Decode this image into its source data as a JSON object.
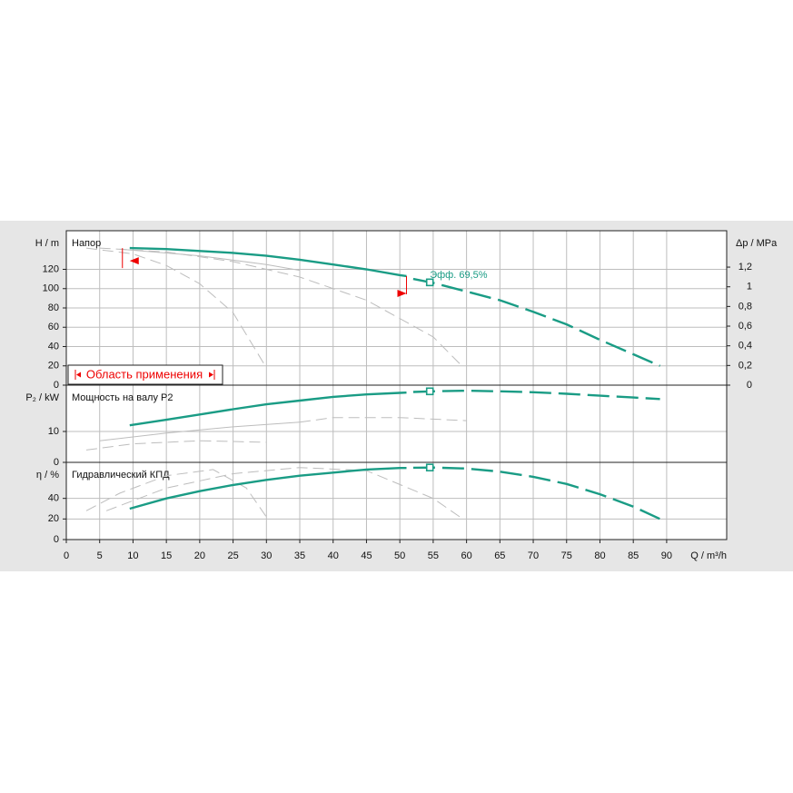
{
  "chart_data": [
    {
      "type": "line",
      "title": "Напор",
      "ylabel": "H / m",
      "ylim": [
        0,
        160
      ],
      "yticks": [
        0,
        20,
        40,
        60,
        80,
        100,
        120
      ],
      "y2label": "Δp / MPa",
      "y2lim": [
        0,
        1.57
      ],
      "y2ticks": [
        0,
        {
          "value": 0.2,
          "label": "0,2"
        },
        {
          "value": 0.4,
          "label": "0,4"
        },
        {
          "value": 0.6,
          "label": "0,6"
        },
        {
          "value": 0.8,
          "label": "0,8"
        },
        1,
        {
          "value": 1.2,
          "label": "1,2"
        }
      ],
      "series": [
        {
          "color": "#bdbdbd",
          "style": "dashed",
          "x": [
            5,
            15,
            25,
            35,
            45,
            55,
            59
          ],
          "values": [
            142,
            138,
            128,
            112,
            88,
            50,
            22
          ]
        },
        {
          "color": "#bdbdbd",
          "style": "dashed",
          "x": [
            3,
            10,
            15,
            20,
            25,
            30
          ],
          "values": [
            142,
            136,
            124,
            105,
            75,
            18
          ]
        },
        {
          "color": "#bdbdbd",
          "style": "solid",
          "x": [
            8,
            20,
            30,
            35
          ],
          "values": [
            141,
            134,
            125,
            119
          ]
        },
        {
          "color": "#1a9c85",
          "style": "solid",
          "x": [
            9.5,
            15,
            20,
            25,
            30,
            35,
            40,
            45,
            50,
            51
          ],
          "values": [
            142,
            141,
            139,
            137,
            134,
            130,
            125,
            120,
            114,
            113
          ]
        },
        {
          "color": "#1a9c85",
          "style": "dashed",
          "x": [
            52,
            55,
            60,
            65,
            70,
            75,
            80,
            85,
            89
          ],
          "values": [
            110,
            106,
            97,
            88,
            76,
            63,
            47,
            32,
            20
          ]
        }
      ],
      "operating_point": {
        "x": 54.5,
        "y": 106.5,
        "label": "Эфф.  69,5%"
      },
      "application_range": {
        "label": "Область применения",
        "x": [
          9.5,
          51
        ],
        "y": [
          142,
          113
        ]
      }
    },
    {
      "type": "line",
      "title": "Мощность на валу P2",
      "ylabel": "P₂ / kW",
      "ylim": [
        0,
        25
      ],
      "yticks": [
        0,
        10
      ],
      "series": [
        {
          "color": "#bdbdbd",
          "style": "dashed",
          "x": [
            3,
            10,
            20,
            30
          ],
          "values": [
            4,
            6,
            7,
            6.5
          ]
        },
        {
          "color": "#bdbdbd",
          "style": "solid",
          "x": [
            5,
            15,
            25,
            35
          ],
          "values": [
            7,
            9.5,
            11.5,
            13
          ]
        },
        {
          "color": "#bdbdbd",
          "style": "dashed",
          "x": [
            35,
            40,
            50,
            60
          ],
          "values": [
            13,
            14.5,
            14.5,
            13.5
          ]
        },
        {
          "color": "#1a9c85",
          "style": "solid",
          "x": [
            9.5,
            15,
            20,
            25,
            30,
            35,
            40,
            45,
            50,
            51
          ],
          "values": [
            12,
            13.8,
            15.5,
            17.2,
            18.8,
            20,
            21.2,
            22,
            22.5,
            22.6
          ]
        },
        {
          "color": "#1a9c85",
          "style": "dashed",
          "x": [
            52,
            55,
            60,
            65,
            70,
            75,
            80,
            85,
            89
          ],
          "values": [
            22.8,
            23,
            23.2,
            23,
            22.7,
            22.2,
            21.6,
            21,
            20.5
          ]
        }
      ],
      "operating_point": {
        "x": 54.5,
        "y": 23
      }
    },
    {
      "type": "line",
      "title": "Гидравлический КПД",
      "ylabel": "η / %",
      "ylim": [
        0,
        75
      ],
      "yticks": [
        0,
        20,
        40
      ],
      "xlabel": "Q / m³/h",
      "xlim": [
        0,
        99
      ],
      "xticks": [
        0,
        5,
        10,
        15,
        20,
        25,
        30,
        35,
        40,
        45,
        50,
        55,
        60,
        65,
        70,
        75,
        80,
        85,
        90
      ],
      "series": [
        {
          "color": "#bdbdbd",
          "style": "dashed",
          "x": [
            3,
            8,
            15,
            22,
            27,
            30
          ],
          "values": [
            28,
            45,
            62,
            68,
            50,
            22
          ]
        },
        {
          "color": "#bdbdbd",
          "style": "dashed",
          "x": [
            6,
            15,
            25,
            35,
            45,
            55,
            59
          ],
          "values": [
            28,
            50,
            64,
            70,
            67,
            40,
            22
          ]
        },
        {
          "color": "#1a9c85",
          "style": "solid",
          "x": [
            9.5,
            15,
            20,
            25,
            30,
            35,
            40,
            45,
            50,
            51
          ],
          "values": [
            30,
            40,
            47,
            53,
            58,
            62,
            65,
            68,
            69.5,
            69.5
          ]
        },
        {
          "color": "#1a9c85",
          "style": "dashed",
          "x": [
            52,
            55,
            60,
            65,
            70,
            75,
            80,
            85,
            89
          ],
          "values": [
            69.8,
            70,
            69,
            66,
            61,
            54,
            44,
            32,
            20
          ]
        }
      ],
      "operating_point": {
        "x": 54.5,
        "y": 70
      }
    }
  ]
}
